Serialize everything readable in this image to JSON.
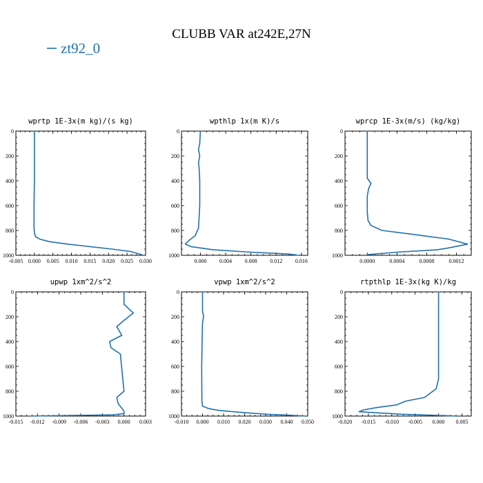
{
  "figure": {
    "title": "CLUBB VAR at242E,27N",
    "legend": "zt92_0",
    "line_color": "#1f6fad"
  },
  "chart_data": [
    {
      "type": "line",
      "title": "wprtp  1E-3x(m kg)/(s kg)",
      "xlabel": "",
      "ylabel": "",
      "xlim": [
        -0.005,
        0.03
      ],
      "ylim": [
        1000,
        0
      ],
      "x_ticks": [
        "-0.005",
        "0.000",
        "0.005",
        "0.010",
        "0.015",
        "0.020",
        "0.025",
        "0.030"
      ],
      "y_ticks": [
        "0",
        "200",
        "400",
        "600",
        "800",
        "1000"
      ],
      "series": [
        {
          "name": "zt92_0",
          "x": [
            0.0,
            0.0,
            0.0,
            -0.0001,
            -0.0001,
            -0.0001,
            0.0,
            0.0003,
            0.0015,
            0.004,
            0.009,
            0.015,
            0.021,
            0.026,
            0.029
          ],
          "y": [
            0,
            200,
            400,
            600,
            700,
            780,
            820,
            850,
            870,
            890,
            910,
            930,
            950,
            970,
            995
          ]
        }
      ]
    },
    {
      "type": "line",
      "title": "wpthlp  1x(m K)/s",
      "xlabel": "",
      "ylabel": "",
      "xlim": [
        -0.003,
        0.017
      ],
      "ylim": [
        1000,
        0
      ],
      "x_ticks": [
        "0.000",
        "0.004",
        "0.008",
        "0.012",
        "0.016"
      ],
      "y_ticks": [
        "0",
        "200",
        "400",
        "600",
        "800",
        "1000"
      ],
      "series": [
        {
          "name": "zt92_0",
          "x": [
            0.0,
            -0.0001,
            -0.0003,
            -0.0001,
            -0.0003,
            -0.0002,
            -0.0001,
            -0.0001,
            -0.0003,
            -0.0008,
            -0.0018,
            -0.0024,
            -0.0015,
            0.002,
            0.008,
            0.014,
            0.0155
          ],
          "y": [
            0,
            100,
            150,
            200,
            250,
            300,
            400,
            600,
            780,
            840,
            880,
            910,
            930,
            955,
            975,
            990,
            1000
          ]
        }
      ]
    },
    {
      "type": "line",
      "title": "wprcp  1E-3x(m/s) (kg/kg)",
      "xlabel": "",
      "ylabel": "",
      "xlim": [
        -0.0003,
        0.0014
      ],
      "ylim": [
        1000,
        0
      ],
      "x_ticks": [
        "0.0000",
        "0.0004",
        "0.0008",
        "0.0012"
      ],
      "y_ticks": [
        "0",
        "200",
        "400",
        "600",
        "800",
        "1000"
      ],
      "series": [
        {
          "name": "zt92_0",
          "x": [
            0.0,
            0.0,
            0.0,
            5e-05,
            2e-05,
            0.0,
            0.0,
            1e-05,
            5e-05,
            0.0002,
            0.0006,
            0.0011,
            0.00135,
            0.0011,
            0.00095,
            0.0004,
            0.0
          ],
          "y": [
            0,
            200,
            380,
            420,
            460,
            520,
            650,
            720,
            760,
            800,
            830,
            870,
            910,
            940,
            955,
            975,
            995
          ]
        }
      ]
    },
    {
      "type": "line",
      "title": "upwp  1xm^2/s^2",
      "xlabel": "",
      "ylabel": "",
      "xlim": [
        -0.015,
        0.003
      ],
      "ylim": [
        1000,
        0
      ],
      "x_ticks": [
        "-0.015",
        "-0.012",
        "-0.009",
        "-0.006",
        "-0.003",
        "0.000",
        "0.003"
      ],
      "y_ticks": [
        "0",
        "200",
        "400",
        "600",
        "800",
        "1000"
      ],
      "series": [
        {
          "name": "zt92_0",
          "x": [
            0.0,
            0.0,
            0.0013,
            0.0,
            -0.001,
            -0.0003,
            -0.002,
            -0.0018,
            -0.0005,
            0.0,
            -0.001,
            -0.0008,
            0.0,
            0.0,
            -0.0015,
            -0.013
          ],
          "y": [
            0,
            100,
            170,
            230,
            280,
            350,
            400,
            450,
            500,
            800,
            850,
            900,
            960,
            980,
            990,
            1000
          ]
        }
      ]
    },
    {
      "type": "line",
      "title": "vpwp  1xm^2/s^2",
      "xlabel": "",
      "ylabel": "",
      "xlim": [
        -0.01,
        0.05
      ],
      "ylim": [
        1000,
        0
      ],
      "x_ticks": [
        "-0.010",
        "0.000",
        "0.010",
        "0.020",
        "0.030",
        "0.040",
        "0.050"
      ],
      "y_ticks": [
        "0",
        "200",
        "400",
        "600",
        "800",
        "1000"
      ],
      "series": [
        {
          "name": "zt92_0",
          "x": [
            0.0,
            0.0,
            0.0005,
            0.0,
            -0.0002,
            -0.0004,
            -0.0003,
            0.0,
            0.003,
            0.008,
            0.018,
            0.03,
            0.04,
            0.049
          ],
          "y": [
            0,
            150,
            200,
            250,
            400,
            600,
            880,
            920,
            940,
            955,
            970,
            985,
            992,
            1000
          ]
        }
      ]
    },
    {
      "type": "line",
      "title": "rtpthlp  1E-3x(kg K)/kg",
      "xlabel": "",
      "ylabel": "",
      "xlim": [
        -0.02,
        0.007
      ],
      "ylim": [
        1000,
        0
      ],
      "x_ticks": [
        "-0.020",
        "-0.015",
        "-0.010",
        "-0.005",
        "0.000",
        "0.005"
      ],
      "y_ticks": [
        "0",
        "200",
        "400",
        "600",
        "800",
        "1000"
      ],
      "series": [
        {
          "name": "zt92_0",
          "x": [
            0.0,
            0.0,
            0.0,
            -0.0005,
            -0.003,
            -0.007,
            -0.009,
            -0.013,
            -0.016,
            -0.017,
            -0.008,
            0.0,
            0.004
          ],
          "y": [
            0,
            400,
            700,
            780,
            850,
            880,
            910,
            930,
            950,
            965,
            985,
            995,
            1000
          ]
        }
      ]
    }
  ]
}
